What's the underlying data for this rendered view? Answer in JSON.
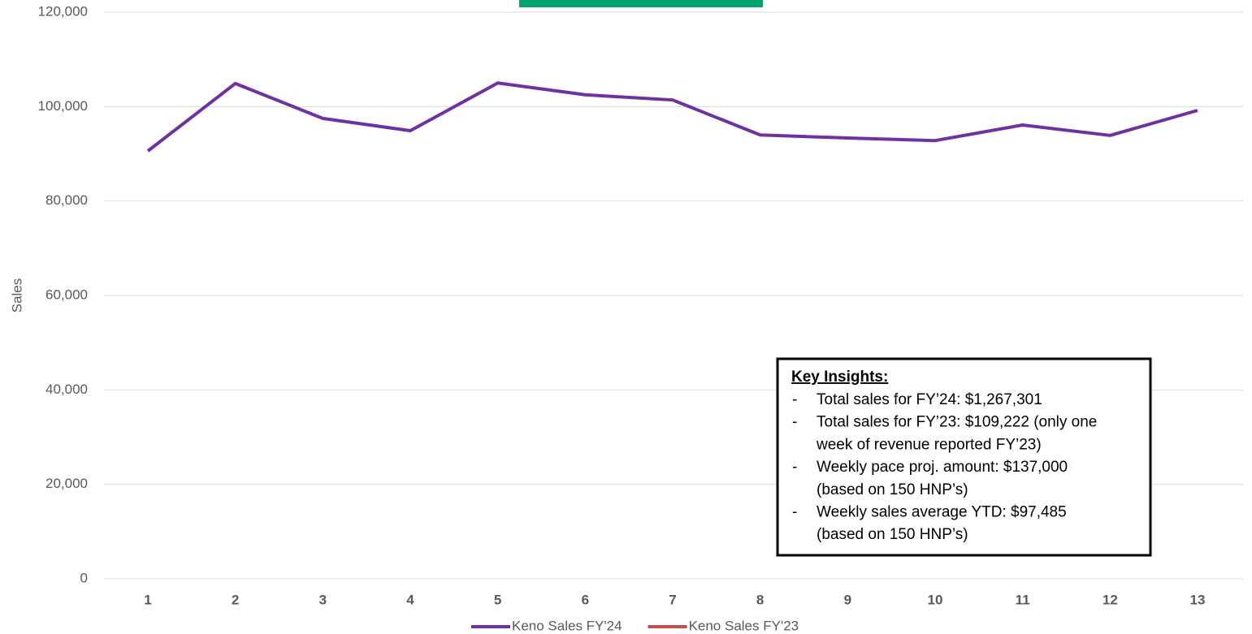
{
  "chart_data": {
    "type": "line",
    "categories": [
      "1",
      "2",
      "3",
      "4",
      "5",
      "6",
      "7",
      "8",
      "9",
      "10",
      "11",
      "12",
      "13"
    ],
    "series": [
      {
        "name": "Keno Sales FY'24",
        "color": "#7030a0",
        "values": [
          90600,
          104900,
          97500,
          94900,
          105000,
          102500,
          101400,
          94000,
          93350,
          92800,
          96100,
          93900,
          99200
        ]
      },
      {
        "name": "Keno Sales FY'23",
        "color": "#c0504d",
        "values": [
          null,
          null,
          null,
          null,
          null,
          null,
          null,
          null,
          null,
          null,
          null,
          null,
          null
        ]
      }
    ],
    "y_label": "Sales",
    "ylim": [
      0,
      120000
    ],
    "yticks": [
      {
        "value": 0,
        "label": "0"
      },
      {
        "value": 20000,
        "label": "20,000"
      },
      {
        "value": 40000,
        "label": "40,000"
      },
      {
        "value": 60000,
        "label": "60,000"
      },
      {
        "value": 80000,
        "label": "80,000"
      },
      {
        "value": 100000,
        "label": "100,000"
      },
      {
        "value": 120000,
        "label": "120,000"
      }
    ],
    "grid": true,
    "legend": "bottom",
    "annotation": {
      "title": "Key Insights:",
      "items": [
        [
          "Total sales for FY’24: $1,267,301"
        ],
        [
          "Total sales for FY’23: $109,222 (only one",
          "week of revenue reported FY’23)"
        ],
        [
          "Weekly pace proj. amount: $137,000",
          "(based on 150 HNP’s)"
        ],
        [
          "Weekly sales average YTD: $97,485",
          "(based on 150 HNP’s)"
        ]
      ],
      "bullet": "-"
    }
  }
}
